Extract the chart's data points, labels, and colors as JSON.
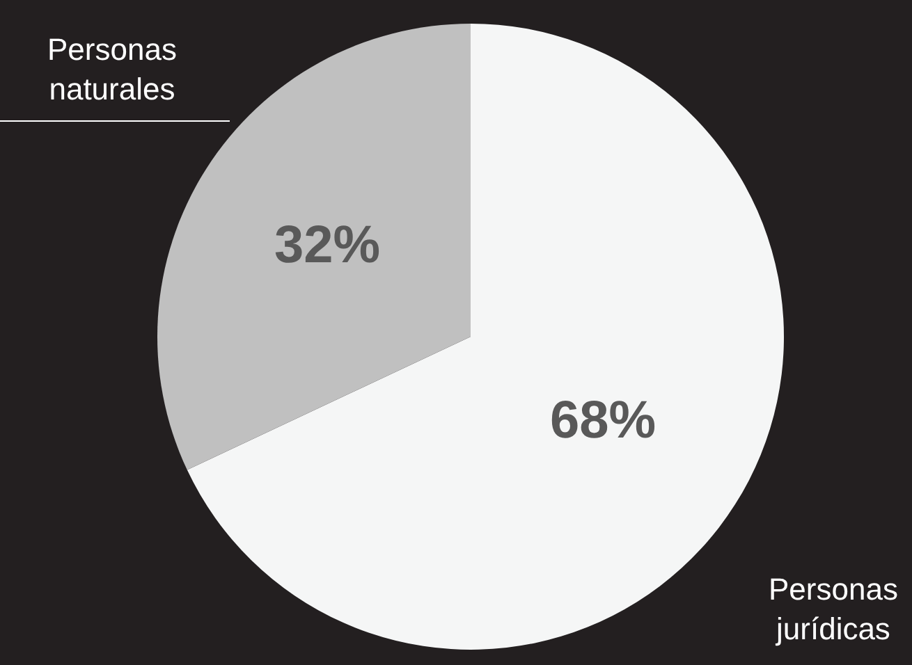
{
  "chart_data": {
    "type": "pie",
    "categories": [
      "Personas jurídicas",
      "Personas naturales"
    ],
    "values": [
      68,
      32
    ],
    "colors": [
      "#f5f6f6",
      "#c0c0c0"
    ],
    "value_labels": [
      "68%",
      "32%"
    ],
    "legend": false
  }
}
